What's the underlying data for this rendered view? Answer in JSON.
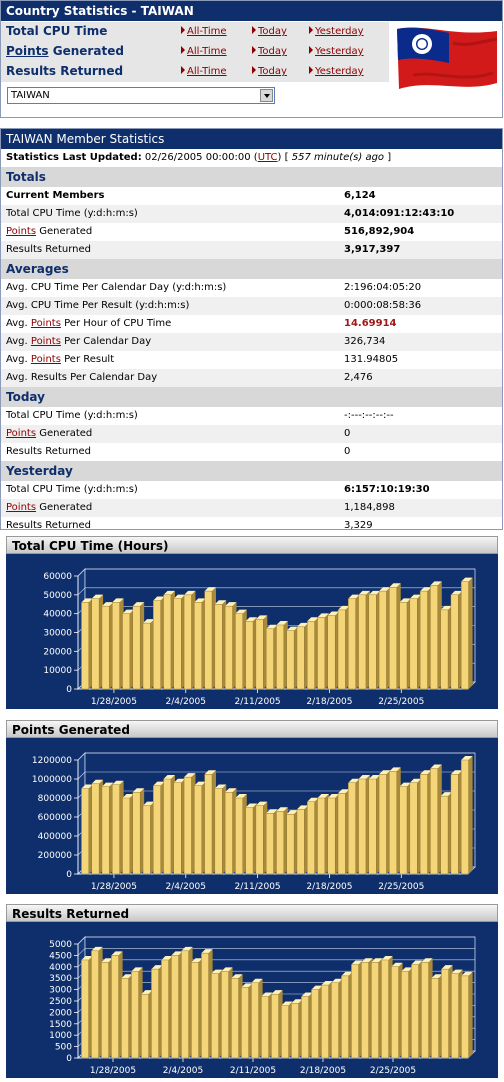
{
  "country": {
    "title": "Country Statistics - TAIWAN",
    "rows": [
      {
        "label": "Total CPU Time",
        "link_part": ""
      },
      {
        "label": "Generated",
        "link_part": "Points"
      },
      {
        "label": "Results Returned",
        "link_part": ""
      }
    ],
    "links": [
      "All-Time",
      "Today",
      "Yesterday"
    ],
    "selected_country": "TAIWAN",
    "flag_icon": "taiwan-flag-icon"
  },
  "member": {
    "title": "TAIWAN Member Statistics",
    "updated_label": "Statistics Last Updated:",
    "updated_value": "02/26/2005 00:00:00",
    "utc": "UTC",
    "ago": "557 minute(s) ago",
    "sections": [
      {
        "name": "Totals",
        "rows": [
          {
            "pre": "Current Members",
            "link": "",
            "post": "",
            "value": "6,124",
            "bold_label": true,
            "bold_value": true
          },
          {
            "pre": "Total CPU Time (y:d:h:m:s)",
            "link": "",
            "post": "",
            "value": "4,014:091:12:43:10",
            "bold_value": true
          },
          {
            "pre": "",
            "link": "Points",
            "post": " Generated",
            "value": "516,892,904",
            "bold_value": true
          },
          {
            "pre": "Results Returned",
            "link": "",
            "post": "",
            "value": "3,917,397",
            "bold_value": true
          }
        ]
      },
      {
        "name": "Averages",
        "rows": [
          {
            "pre": "Avg. CPU Time Per Calendar Day (y:d:h:m:s)",
            "link": "",
            "post": "",
            "value": "2:196:04:05:20"
          },
          {
            "pre": "Avg. CPU Time Per Result (y:d:h:m:s)",
            "link": "",
            "post": "",
            "value": "0:000:08:58:36"
          },
          {
            "pre": "Avg. ",
            "link": "Points",
            "post": " Per Hour of CPU Time",
            "value": "14.69914",
            "red_value": true
          },
          {
            "pre": "Avg. ",
            "link": "Points",
            "post": " Per Calendar Day",
            "value": "326,734"
          },
          {
            "pre": "Avg. ",
            "link": "Points",
            "post": " Per Result",
            "value": "131.94805"
          },
          {
            "pre": "Avg. Results Per Calendar Day",
            "link": "",
            "post": "",
            "value": "2,476"
          }
        ]
      },
      {
        "name": "Today",
        "rows": [
          {
            "pre": "Total CPU Time (y:d:h:m:s)",
            "link": "",
            "post": "",
            "value": "-:---:--:--:--"
          },
          {
            "pre": "",
            "link": "Points",
            "post": " Generated",
            "value": "0"
          },
          {
            "pre": "Results Returned",
            "link": "",
            "post": "",
            "value": "0"
          }
        ]
      },
      {
        "name": "Yesterday",
        "rows": [
          {
            "pre": "Total CPU Time (y:d:h:m:s)",
            "link": "",
            "post": "",
            "value": "6:157:10:19:30",
            "bold_value": true
          },
          {
            "pre": "",
            "link": "Points",
            "post": " Generated",
            "value": "1,184,898"
          },
          {
            "pre": "Results Returned",
            "link": "",
            "post": "",
            "value": "3,329"
          }
        ]
      }
    ]
  },
  "chart_data": [
    {
      "type": "bar",
      "title": "Total CPU Time (Hours)",
      "xticks": [
        "1/28/2005",
        "2/4/2005",
        "2/11/2005",
        "2/18/2005",
        "2/25/2005"
      ],
      "xtick_index": [
        3,
        10,
        17,
        24,
        31
      ],
      "ylim": [
        0,
        60000
      ],
      "yticks": [
        0,
        10000,
        20000,
        30000,
        40000,
        50000,
        60000
      ],
      "values": [
        46000,
        48000,
        44000,
        46000,
        40000,
        44000,
        35000,
        47000,
        50000,
        48000,
        50000,
        46000,
        52000,
        45000,
        44000,
        40000,
        36000,
        37000,
        32000,
        34000,
        31000,
        33000,
        36000,
        38000,
        39000,
        42000,
        48000,
        50000,
        50000,
        52000,
        54000,
        46000,
        48000,
        52000,
        55000,
        42000,
        50000,
        57000
      ]
    },
    {
      "type": "bar",
      "title": "Points Generated",
      "xticks": [
        "1/28/2005",
        "2/4/2005",
        "2/11/2005",
        "2/18/2005",
        "2/25/2005"
      ],
      "xtick_index": [
        3,
        10,
        17,
        24,
        31
      ],
      "ylim": [
        0,
        1200000
      ],
      "yticks": [
        0,
        200000,
        400000,
        600000,
        800000,
        1000000,
        1200000
      ],
      "values": [
        900000,
        950000,
        920000,
        940000,
        800000,
        860000,
        720000,
        930000,
        1000000,
        960000,
        1020000,
        930000,
        1050000,
        900000,
        860000,
        800000,
        700000,
        720000,
        640000,
        660000,
        630000,
        680000,
        760000,
        800000,
        800000,
        850000,
        960000,
        1000000,
        1000000,
        1050000,
        1080000,
        920000,
        960000,
        1050000,
        1110000,
        820000,
        1050000,
        1200000
      ]
    },
    {
      "type": "bar",
      "title": "Results Returned",
      "xticks": [
        "1/28/2005",
        "2/4/2005",
        "2/11/2005",
        "2/18/2005",
        "2/25/2005"
      ],
      "xtick_index": [
        3,
        10,
        17,
        24,
        31
      ],
      "ylim": [
        0,
        5000
      ],
      "yticks": [
        0,
        500,
        1000,
        1500,
        2000,
        2500,
        3000,
        3500,
        4000,
        4500,
        5000
      ],
      "values": [
        4300,
        4700,
        4200,
        4500,
        3500,
        3800,
        2800,
        3900,
        4300,
        4500,
        4700,
        4200,
        4600,
        3700,
        3800,
        3500,
        3100,
        3300,
        2700,
        2800,
        2300,
        2400,
        2700,
        3000,
        3200,
        3300,
        3600,
        4100,
        4200,
        4200,
        4300,
        4000,
        3800,
        4100,
        4200,
        3500,
        3900,
        3700,
        3600
      ]
    }
  ]
}
